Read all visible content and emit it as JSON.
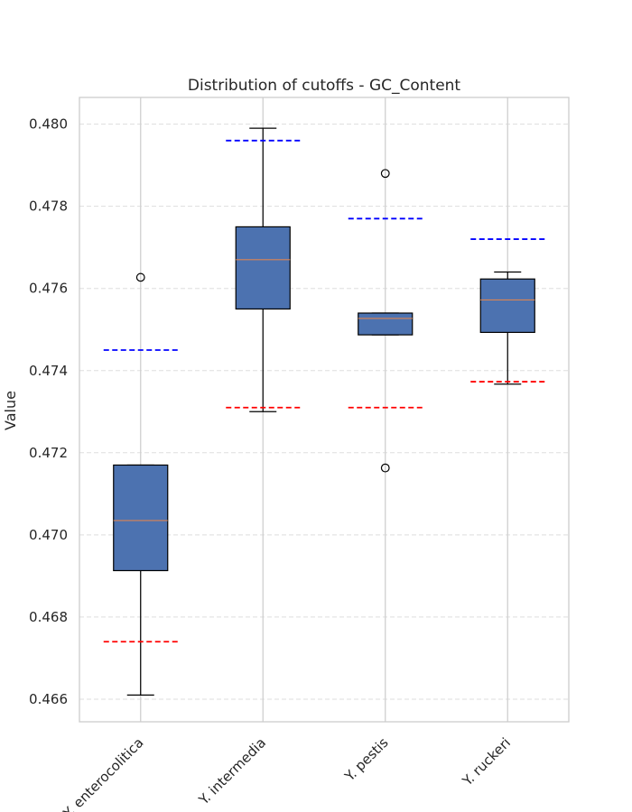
{
  "chart_data": {
    "type": "box",
    "title": "Distribution of cutoffs - GC_Content",
    "xlabel": "",
    "ylabel": "Value",
    "ylim": [
      0.46545,
      0.48065
    ],
    "yticks": [
      0.466,
      0.468,
      0.47,
      0.472,
      0.474,
      0.476,
      0.478,
      0.48
    ],
    "ytick_labels": [
      "0.466",
      "0.468",
      "0.470",
      "0.472",
      "0.474",
      "0.476",
      "0.478",
      "0.480"
    ],
    "grid": true,
    "categories": [
      "Y. enterocolitica",
      "Y. intermedia",
      "Y. pestis",
      "Y. ruckeri"
    ],
    "box_color": "#4c72b0",
    "median_color": "#dd8452",
    "upper_cutoff_color": "#0000ff",
    "lower_cutoff_color": "#ff0000",
    "boxes": [
      {
        "category": "Y. enterocolitica",
        "whisker_low": 0.4661,
        "q1": 0.46913,
        "median": 0.47035,
        "q3": 0.4717,
        "whisker_high": 0.4717,
        "outliers": [
          0.47627
        ],
        "upper_cutoff": 0.4745,
        "lower_cutoff": 0.4674
      },
      {
        "category": "Y. intermedia",
        "whisker_low": 0.473,
        "q1": 0.4755,
        "median": 0.4767,
        "q3": 0.4775,
        "whisker_high": 0.4799,
        "outliers": [],
        "upper_cutoff": 0.4796,
        "lower_cutoff": 0.4731
      },
      {
        "category": "Y. pestis",
        "whisker_low": 0.47487,
        "q1": 0.47487,
        "median": 0.47527,
        "q3": 0.4754,
        "whisker_high": 0.4754,
        "outliers": [
          0.4788,
          0.47163
        ],
        "upper_cutoff": 0.4777,
        "lower_cutoff": 0.4731
      },
      {
        "category": "Y. ruckeri",
        "whisker_low": 0.47367,
        "q1": 0.47493,
        "median": 0.47572,
        "q3": 0.47623,
        "whisker_high": 0.4764,
        "outliers": [],
        "upper_cutoff": 0.4772,
        "lower_cutoff": 0.47373
      }
    ]
  }
}
